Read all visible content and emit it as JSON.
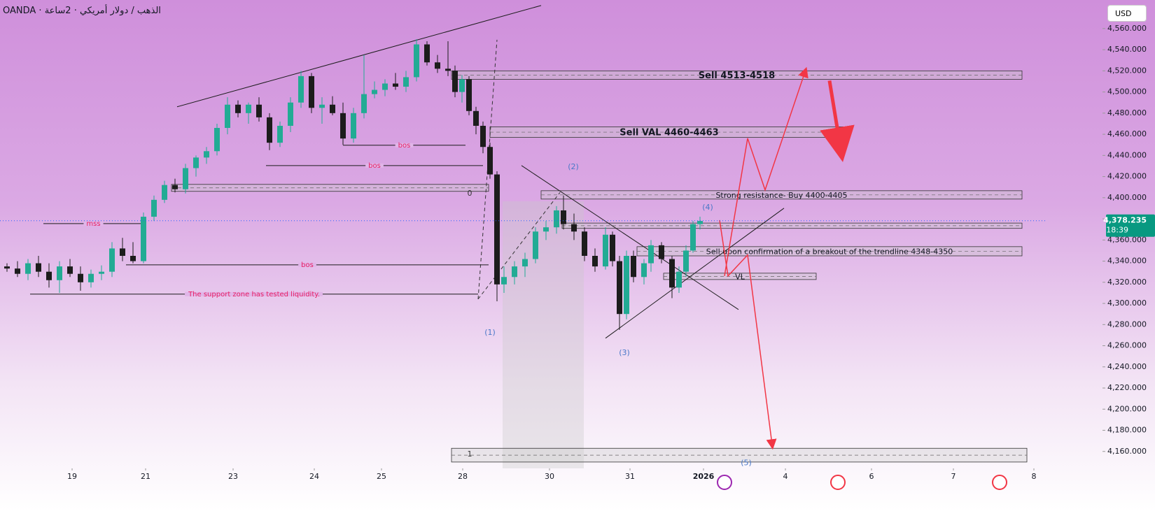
{
  "header": {
    "symbol_line": "OANDA · الذهب / دولار أمريكي · 2ساعة",
    "currency": "USD"
  },
  "chart_data": {
    "type": "candlestick",
    "xlim": [
      0,
      149.5
    ],
    "ylim": [
      4144,
      4587
    ],
    "xticks": [
      {
        "value": 10.3,
        "label": "19"
      },
      {
        "value": 20.8,
        "label": "21"
      },
      {
        "value": 33.3,
        "label": "23"
      },
      {
        "value": 44.9,
        "label": "24"
      },
      {
        "value": 54.5,
        "label": "25"
      },
      {
        "value": 66.1,
        "label": "28"
      },
      {
        "value": 78.5,
        "label": "30"
      },
      {
        "value": 90,
        "label": "31"
      },
      {
        "value": 100.5,
        "label": "2026"
      },
      {
        "value": 112.2,
        "label": "4"
      },
      {
        "value": 124.5,
        "label": "6"
      },
      {
        "value": 136.2,
        "label": "7"
      },
      {
        "value": 147.7,
        "label": "8"
      }
    ],
    "yticks": [
      {
        "value": 4160,
        "label": "4,160.000"
      },
      {
        "value": 4180,
        "label": "4,180.000"
      },
      {
        "value": 4200,
        "label": "4,200.000"
      },
      {
        "value": 4220,
        "label": "4,220.000"
      },
      {
        "value": 4240,
        "label": "4,240.000"
      },
      {
        "value": 4260,
        "label": "4,260.000"
      },
      {
        "value": 4280,
        "label": "4,280.000"
      },
      {
        "value": 4300,
        "label": "4,300.000"
      },
      {
        "value": 4320,
        "label": "4,320.000"
      },
      {
        "value": 4340,
        "label": "4,340.000"
      },
      {
        "value": 4360,
        "label": "4,360.000"
      },
      {
        "value": 4380,
        "label": "4,380.000"
      },
      {
        "value": 4400,
        "label": "4,400.000"
      },
      {
        "value": 4420,
        "label": "4,420.000"
      },
      {
        "value": 4440,
        "label": "4,440.000"
      },
      {
        "value": 4460,
        "label": "4,460.000"
      },
      {
        "value": 4480,
        "label": "4,480.000"
      },
      {
        "value": 4500,
        "label": "4,500.000"
      },
      {
        "value": 4520,
        "label": "4,520.000"
      },
      {
        "value": 4540,
        "label": "4,540.000"
      },
      {
        "value": 4560,
        "label": "4,560.000"
      }
    ],
    "up_color": "#22ab94",
    "down_color": "#1c1c1c",
    "x": [
      1,
      2.5,
      4,
      5.5,
      7,
      8.5,
      10,
      11.5,
      13,
      14.5,
      16,
      17.5,
      19,
      20.5,
      22,
      23.5,
      25,
      26.5,
      28,
      29.5,
      31,
      32.5,
      34,
      35.5,
      37,
      38.5,
      40,
      41.5,
      43,
      44.5,
      46,
      47.5,
      49,
      50.5,
      52,
      53.5,
      55,
      56.5,
      58,
      59.5,
      61,
      62.5,
      64,
      65,
      66,
      67,
      68,
      69,
      70,
      71,
      72,
      73.5,
      75,
      76.5,
      78,
      79.5,
      80.5,
      82,
      83.5,
      85,
      86.5,
      87.5,
      88.5,
      89.5,
      90.5,
      92,
      93,
      94.5,
      96,
      97,
      98,
      99,
      100
    ],
    "open": [
      4335,
      4333,
      4328,
      4338,
      4330,
      4322,
      4335,
      4328,
      4320,
      4328,
      4330,
      4352,
      4345,
      4340,
      4382,
      4398,
      4412,
      4408,
      4428,
      4438,
      4444,
      4466,
      4488,
      4480,
      4488,
      4476,
      4452,
      4468,
      4490,
      4515,
      4485,
      4488,
      4480,
      4456,
      4480,
      4498,
      4502,
      4508,
      4505,
      4514,
      4545,
      4528,
      4522,
      4520,
      4500,
      4512,
      4482,
      4468,
      4448,
      4422,
      4318,
      4325,
      4335,
      4342,
      4368,
      4372,
      4388,
      4375,
      4368,
      4345,
      4335,
      4365,
      4340,
      4290,
      4345,
      4325,
      4338,
      4355,
      4342,
      4315,
      4330,
      4350,
      4375
    ],
    "high": [
      4338,
      4340,
      4342,
      4345,
      4338,
      4340,
      4342,
      4335,
      4332,
      4336,
      4358,
      4362,
      4358,
      4386,
      4402,
      4416,
      4418,
      4432,
      4440,
      4448,
      4470,
      4495,
      4492,
      4490,
      4495,
      4480,
      4472,
      4495,
      4520,
      4518,
      4495,
      4496,
      4490,
      4485,
      4535,
      4510,
      4512,
      4518,
      4520,
      4550,
      4548,
      4535,
      4548,
      4525,
      4516,
      4515,
      4486,
      4472,
      4452,
      4425,
      4335,
      4340,
      4348,
      4372,
      4378,
      4392,
      4402,
      4385,
      4372,
      4352,
      4372,
      4368,
      4345,
      4350,
      4350,
      4342,
      4360,
      4358,
      4345,
      4335,
      4355,
      4378,
      4382
    ],
    "low": [
      4330,
      4325,
      4322,
      4325,
      4315,
      4310,
      4325,
      4312,
      4315,
      4322,
      4325,
      4340,
      4338,
      4338,
      4378,
      4395,
      4405,
      4404,
      4420,
      4432,
      4440,
      4460,
      4476,
      4470,
      4472,
      4445,
      4448,
      4462,
      4485,
      4480,
      4470,
      4478,
      4450,
      4452,
      4475,
      4494,
      4496,
      4502,
      4500,
      4510,
      4525,
      4518,
      4515,
      4495,
      4490,
      4478,
      4460,
      4442,
      4418,
      4302,
      4310,
      4318,
      4325,
      4338,
      4360,
      4366,
      4370,
      4360,
      4340,
      4330,
      4332,
      4335,
      4275,
      4285,
      4320,
      4318,
      4330,
      4338,
      4305,
      4310,
      4325,
      4348,
      4370
    ],
    "close": [
      4333,
      4328,
      4338,
      4330,
      4322,
      4335,
      4328,
      4320,
      4328,
      4330,
      4352,
      4345,
      4340,
      4382,
      4398,
      4412,
      4408,
      4428,
      4438,
      4444,
      4466,
      4488,
      4480,
      4488,
      4476,
      4452,
      4468,
      4490,
      4515,
      4485,
      4488,
      4480,
      4456,
      4480,
      4498,
      4502,
      4508,
      4505,
      4514,
      4545,
      4528,
      4522,
      4520,
      4500,
      4512,
      4482,
      4468,
      4448,
      4422,
      4318,
      4325,
      4335,
      4342,
      4368,
      4372,
      4388,
      4375,
      4368,
      4345,
      4335,
      4365,
      4340,
      4290,
      4345,
      4325,
      4338,
      4355,
      4342,
      4315,
      4330,
      4350,
      4375,
      4378
    ],
    "last_price": {
      "value": 4378.235,
      "label": "4,378.235",
      "countdown": "18:39",
      "color": "#089981"
    },
    "zones": [
      {
        "x": [
          64.5,
          146
        ],
        "y": [
          4512,
          4520
        ],
        "label": "Sell 4513-4518",
        "bold": true
      },
      {
        "x": [
          70,
          121.2
        ],
        "y": [
          4457,
          4467
        ],
        "label": "Sell VAL 4460-4463",
        "bold": true
      },
      {
        "x": [
          77.3,
          146
        ],
        "y": [
          4398.7,
          4406.6
        ],
        "label": "Strong resistance- Buy 4400-4405",
        "bold": false
      },
      {
        "x": [
          80.3,
          146
        ],
        "y": [
          4371,
          4376
        ],
        "bold": false
      },
      {
        "x": [
          91,
          146
        ],
        "y": [
          4345,
          4353.7
        ],
        "label": "Sell upon confirmation of a breakout of the trendline 4348-4350",
        "bold": false
      },
      {
        "x": [
          94.8,
          116.6
        ],
        "y": [
          4322.6,
          4328.6
        ],
        "label": "VL",
        "bold": false
      },
      {
        "x": [
          24.5,
          69.8
        ],
        "y": [
          4406,
          4412.6
        ],
        "bold": false
      },
      {
        "x": [
          64.5,
          146.7
        ],
        "y": [
          4150,
          4163
        ],
        "bold": false
      }
    ],
    "hlines": [
      {
        "x": [
          49,
          66.5
        ],
        "y": 4449.6,
        "label": "bos"
      },
      {
        "x": [
          38,
          69
        ],
        "y": 4430.4,
        "label": "bos"
      },
      {
        "x": [
          18,
          69.8
        ],
        "y": 4336.5,
        "label": "bos"
      },
      {
        "x": [
          6.2,
          20.5
        ],
        "y": 4375.5,
        "label": "mss"
      },
      {
        "x": [
          4.3,
          68.3
        ],
        "y": 4308.8,
        "label": "The support zone has tested liquidity."
      }
    ],
    "hline_color": "#e91e63",
    "lines": [
      {
        "points": [
          [
            25.3,
            4486
          ],
          [
            77.3,
            4581.8
          ]
        ],
        "color": "#1c1c1c",
        "width": 1,
        "dashed": false
      },
      {
        "points": [
          [
            74.5,
            4430.4
          ],
          [
            105.5,
            4294.2
          ]
        ],
        "color": "#1c1c1c",
        "width": 1,
        "dashed": false
      },
      {
        "points": [
          [
            86.5,
            4267.1
          ],
          [
            112,
            4390.1
          ]
        ],
        "color": "#1c1c1c",
        "width": 1,
        "dashed": false
      },
      {
        "points": [
          [
            68.3,
            4304.1
          ],
          [
            71,
            4549.4
          ]
        ],
        "color": "#333333",
        "width": 1,
        "dashed": true
      },
      {
        "points": [
          [
            68.3,
            4304.1
          ],
          [
            80,
            4405
          ]
        ],
        "color": "#333333",
        "width": 1,
        "dashed": true
      },
      {
        "points": [
          [
            102.8,
            4378.8
          ],
          [
            104,
            4326
          ],
          [
            106.8,
            4345.8
          ],
          [
            110.3,
            4166.6
          ]
        ],
        "color": "#f23645",
        "width": 1.5,
        "dashed": false
      },
      {
        "points": [
          [
            103.5,
            4326
          ],
          [
            106.8,
            4456.2
          ],
          [
            109.3,
            4407.3
          ],
          [
            115,
            4519
          ]
        ],
        "color": "#f23645",
        "width": 1.5,
        "dashed": false
      },
      {
        "points": [
          [
            118.5,
            4510.7
          ],
          [
            120,
            4450
          ]
        ],
        "color": "#f23645",
        "width": 5,
        "dashed": false
      }
    ],
    "labels": [
      {
        "x": 70,
        "y": 4272.4,
        "text": "(1)"
      },
      {
        "x": 81.9,
        "y": 4429,
        "text": "(2)"
      },
      {
        "x": 89.2,
        "y": 4253.2,
        "text": "(3)"
      },
      {
        "x": 101.1,
        "y": 4390.7,
        "text": "(4)"
      },
      {
        "x": 106.6,
        "y": 4148.8,
        "text": "(5)"
      },
      {
        "x": 67.1,
        "y": 4404,
        "text": "0"
      },
      {
        "x": 67.1,
        "y": 4157.3,
        "text": "1"
      }
    ],
    "label_color": "#4a78c8"
  }
}
